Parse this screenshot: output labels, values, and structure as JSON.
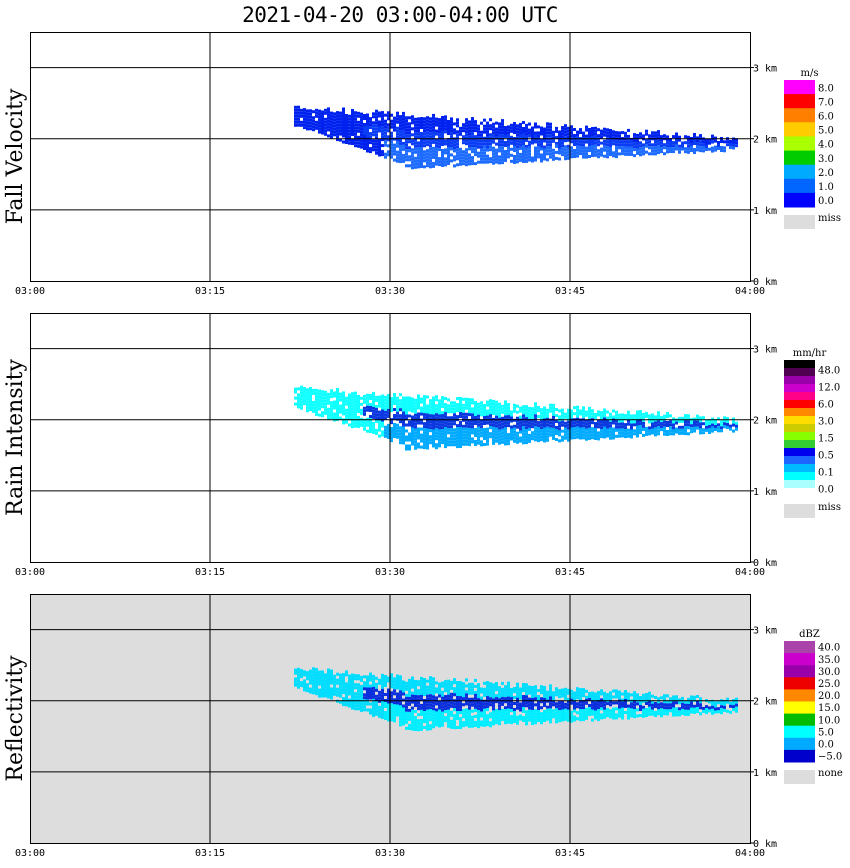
{
  "title": "2021-04-20   03:00-04:00 UTC",
  "colors": {
    "missing": "#dddddd",
    "grid": "#000000"
  },
  "chart_data": [
    {
      "type": "heatmap",
      "title": "Fall Velocity",
      "x_ticks": [
        "03:00",
        "03:15",
        "03:30",
        "03:45",
        "04:00"
      ],
      "xlim": [
        "03:00",
        "04:00"
      ],
      "y_ticks": [
        "0 km",
        "1 km",
        "2 km",
        "3 km"
      ],
      "ylim_km": [
        0,
        3.5
      ],
      "background": "#ffffff",
      "legend": {
        "unit": "m/s",
        "labels": [
          "8.0",
          "7.0",
          "6.0",
          "5.0",
          "4.0",
          "3.0",
          "2.0",
          "1.0",
          "0.0"
        ],
        "colors": [
          "#ff00ff",
          "#ff0000",
          "#ff8000",
          "#ffcc00",
          "#aaff00",
          "#00cc00",
          "#00aaff",
          "#0066ff",
          "#0000ff"
        ],
        "missing_label": "miss"
      },
      "echo": {
        "start_time": "03:22",
        "end_time": "03:59",
        "top_km": 2.45,
        "base_km": 1.55,
        "layers": [
          {
            "color": "#0022ee",
            "role": "outer"
          },
          {
            "color": "#1e6cff",
            "role": "core"
          },
          {
            "color": "#0b3cf5",
            "role": "inner"
          }
        ]
      }
    },
    {
      "type": "heatmap",
      "title": "Rain Intensity",
      "x_ticks": [
        "03:00",
        "03:15",
        "03:30",
        "03:45",
        "04:00"
      ],
      "xlim": [
        "03:00",
        "04:00"
      ],
      "y_ticks": [
        "0 km",
        "1 km",
        "2 km",
        "3 km"
      ],
      "ylim_km": [
        0,
        3.5
      ],
      "background": "#ffffff",
      "legend": {
        "unit": "mm/hr",
        "labels": [
          "48.0",
          "12.0",
          "6.0",
          "3.0",
          "1.5",
          "0.5",
          "0.1",
          "0.0"
        ],
        "colors": [
          "#000000",
          "#500050",
          "#9900aa",
          "#cc00cc",
          "#ff0088",
          "#ff0000",
          "#ff8800",
          "#ffdd00",
          "#cccc00",
          "#88ff00",
          "#33cc33",
          "#0000ee",
          "#1e64ff",
          "#00bbff",
          "#00ffff",
          "#aaffff",
          "#ffffff"
        ],
        "missing_label": "miss"
      },
      "echo": {
        "start_time": "03:22",
        "end_time": "03:59",
        "top_km": 2.45,
        "base_km": 1.55,
        "layers": [
          {
            "color": "#11ffff",
            "role": "outer"
          },
          {
            "color": "#00aaff",
            "role": "core"
          },
          {
            "color": "#0c38e0",
            "role": "inner"
          }
        ]
      }
    },
    {
      "type": "heatmap",
      "title": "Reflectivity",
      "x_ticks": [
        "03:00",
        "03:15",
        "03:30",
        "03:45",
        "04:00"
      ],
      "xlim": [
        "03:00",
        "04:00"
      ],
      "y_ticks": [
        "0 km",
        "1 km",
        "2 km",
        "3 km"
      ],
      "ylim_km": [
        0,
        3.5
      ],
      "background": "#dddddd",
      "legend": {
        "unit": "dBZ",
        "labels": [
          "40.0",
          "35.0",
          "30.0",
          "25.0",
          "20.0",
          "15.0",
          "10.0",
          "5.0",
          "0.0",
          "−5.0"
        ],
        "colors": [
          "#aa44aa",
          "#cc00cc",
          "#9900aa",
          "#ee0000",
          "#ff8800",
          "#ffff00",
          "#00bb00",
          "#00ffff",
          "#00aaff",
          "#0000cc"
        ],
        "missing_label": "none"
      },
      "echo": {
        "start_time": "03:22",
        "end_time": "03:59",
        "top_km": 2.45,
        "base_km": 1.55,
        "layers": [
          {
            "color": "#00ddff",
            "role": "outer"
          },
          {
            "color": "#00eeff",
            "role": "core"
          },
          {
            "color": "#0b2fdd",
            "role": "base"
          }
        ]
      }
    }
  ]
}
